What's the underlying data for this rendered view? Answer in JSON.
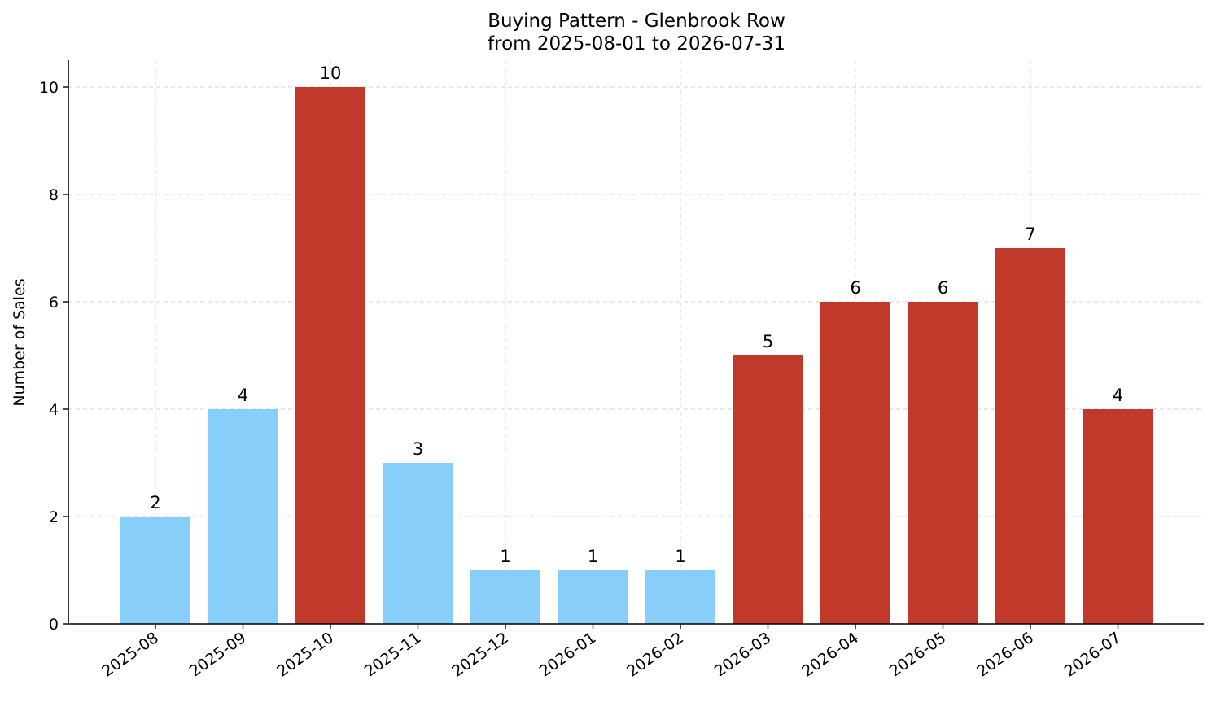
{
  "chart_data": {
    "type": "bar",
    "title": "Buying Pattern - Glenbrook Row",
    "subtitle": "from 2025-08-01 to 2026-07-31",
    "xlabel": "",
    "ylabel": "Number of Sales",
    "categories": [
      "2025-08",
      "2025-09",
      "2025-10",
      "2025-11",
      "2025-12",
      "2026-01",
      "2026-02",
      "2026-03",
      "2026-04",
      "2026-05",
      "2026-06",
      "2026-07"
    ],
    "values": [
      2,
      4,
      10,
      3,
      1,
      1,
      1,
      5,
      6,
      6,
      7,
      4
    ],
    "bar_colors": [
      "#87CEFA",
      "#87CEFA",
      "#C0392B",
      "#87CEFA",
      "#87CEFA",
      "#87CEFA",
      "#87CEFA",
      "#C0392B",
      "#C0392B",
      "#C0392B",
      "#C0392B",
      "#C0392B"
    ],
    "ylim": [
      0,
      10.5
    ],
    "yticks": [
      0,
      2,
      4,
      6,
      8,
      10
    ],
    "grid": true,
    "data_labels": true
  }
}
